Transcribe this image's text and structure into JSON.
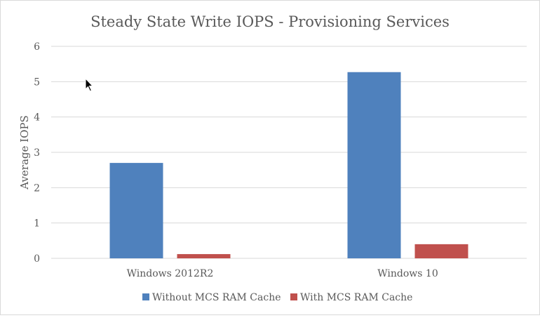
{
  "chart_data": {
    "type": "bar",
    "title": "Steady State Write IOPS - Provisioning Services",
    "xlabel": "",
    "ylabel": "Average IOPS",
    "categories": [
      "Windows 2012R2",
      "Windows 10"
    ],
    "series": [
      {
        "name": "Without MCS RAM Cache",
        "color": "#4f81bd",
        "values": [
          2.7,
          5.27
        ]
      },
      {
        "name": "With MCS RAM Cache",
        "color": "#c0504d",
        "values": [
          0.12,
          0.4
        ]
      }
    ],
    "ylim": [
      0,
      6
    ],
    "yticks": [
      "0",
      "1",
      "2",
      "3",
      "4",
      "5",
      "6"
    ],
    "grid": true,
    "legend_position": "bottom"
  }
}
